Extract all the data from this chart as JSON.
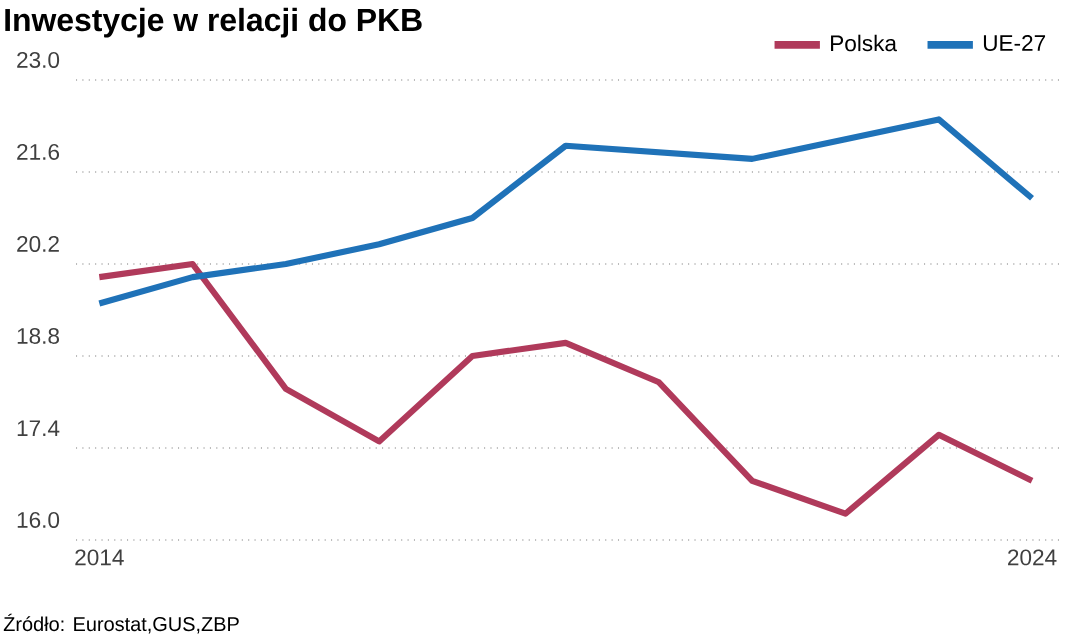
{
  "chart_data": {
    "type": "line",
    "title": "Inwestycje w relacji do PKB",
    "x": [
      2014,
      2015,
      2016,
      2017,
      2018,
      2019,
      2020,
      2021,
      2022,
      2023,
      2024
    ],
    "series": [
      {
        "name": "Polska",
        "color": "#b03a5b",
        "values": [
          20.0,
          20.2,
          18.3,
          17.5,
          18.8,
          19.0,
          18.4,
          16.9,
          16.4,
          17.6,
          16.9
        ]
      },
      {
        "name": "UE-27",
        "color": "#1f72b8",
        "values": [
          19.6,
          20.0,
          20.2,
          20.5,
          20.9,
          22.0,
          21.9,
          21.8,
          22.1,
          22.4,
          21.2
        ]
      }
    ],
    "xlim": [
      2013.75,
      2024.3
    ],
    "xticks": [
      2014,
      2024
    ],
    "ylim": [
      16,
      23
    ],
    "yticks": [
      {
        "value": 16,
        "label": "16.0"
      },
      {
        "value": 17.4,
        "label": "17.4"
      },
      {
        "value": 18.8,
        "label": "18.8"
      },
      {
        "value": 20.2,
        "label": "20.2"
      },
      {
        "value": 21.6,
        "label": "21.6"
      },
      {
        "value": 23,
        "label": "23.0"
      }
    ],
    "grid": "y",
    "legend": "top right",
    "marker": "none",
    "line_style": "solid",
    "annotations": [
      "Źródło: Eurostat,GUS,ZBP"
    ]
  }
}
